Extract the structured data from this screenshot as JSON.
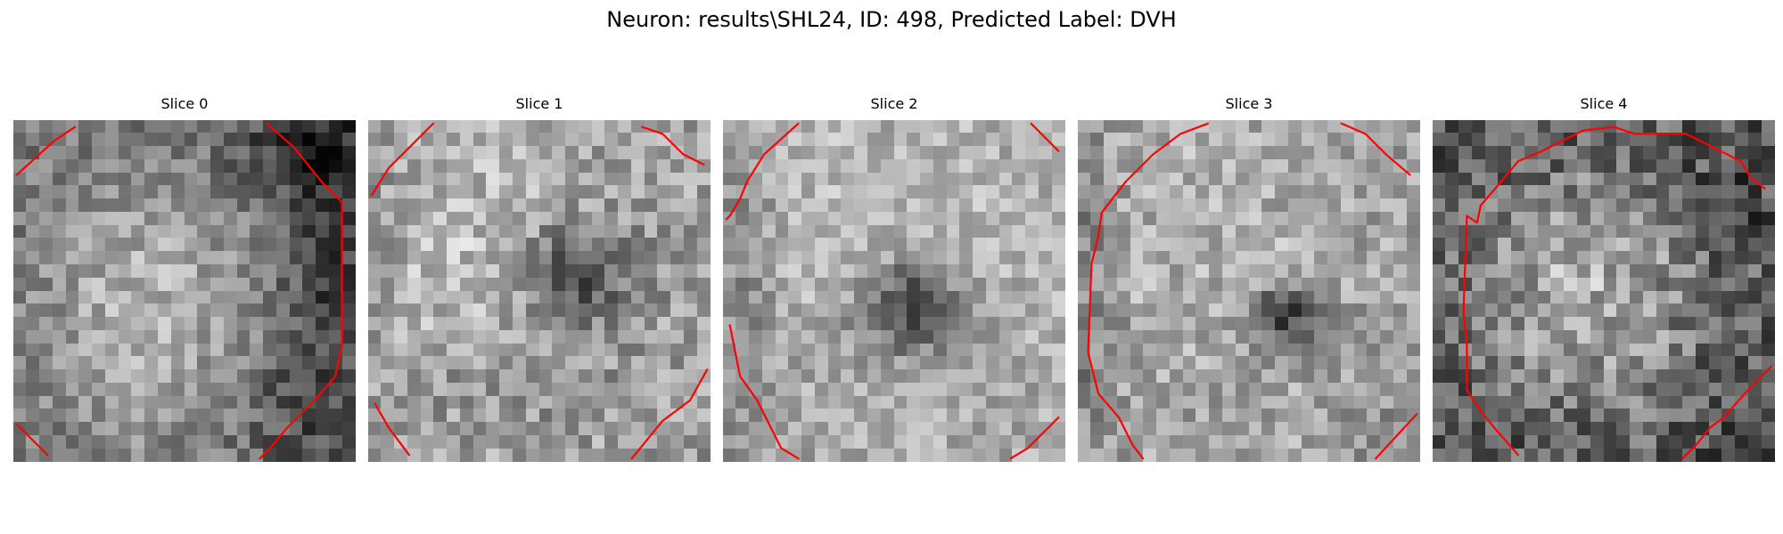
{
  "figure": {
    "title": "Neuron: results\\SHL24, ID: 498, Predicted Label: DVH",
    "contour_color": "#ff0000",
    "colormap": "grayscale",
    "panels": [
      {
        "label": "Slice 0"
      },
      {
        "label": "Slice 1"
      },
      {
        "label": "Slice 2"
      },
      {
        "label": "Slice 3"
      },
      {
        "label": "Slice 4"
      }
    ]
  }
}
